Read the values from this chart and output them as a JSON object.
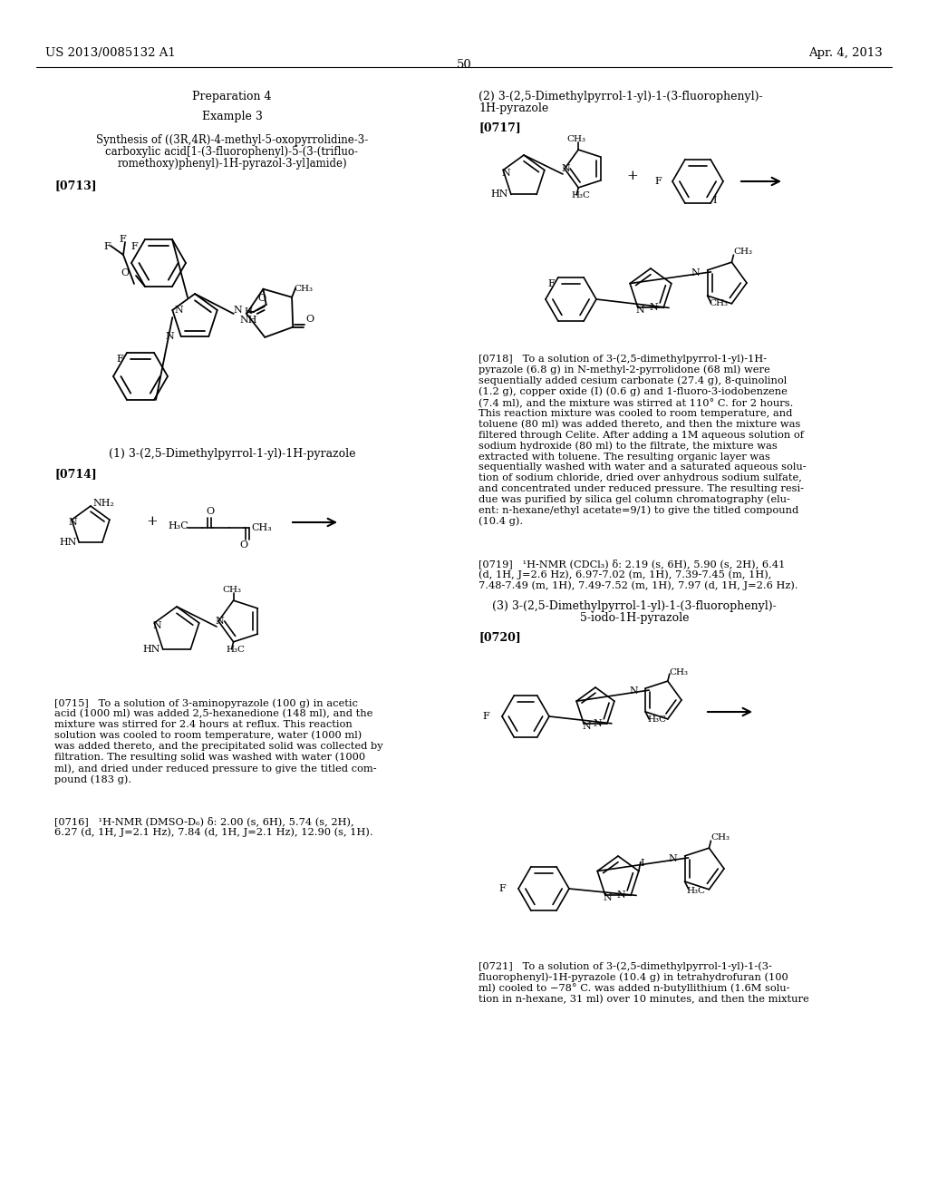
{
  "background_color": "#ffffff",
  "page_number": "50",
  "header_left": "US 2013/0085132 A1",
  "header_right": "Apr. 4, 2013",
  "lc_prep": "Preparation 4",
  "lc_ex": "Example 3",
  "lc_synth_line1": "Synthesis of ((3R,4R)-4-methyl-5-oxopyrrolidine-3-",
  "lc_synth_line2": "carboxylic acid[1-(3-fluorophenyl)-5-(3-(trifluo-",
  "lc_synth_line3": "romethoxy)phenyl)-1H-pyrazol-3-yl]amide)",
  "lc_0713": "[0713]",
  "lc_sec1": "(1) 3-(2,5-Dimethylpyrrol-1-yl)-1H-pyrazole",
  "lc_0714": "[0714]",
  "lc_0715": "[0715]   To a solution of 3-aminopyrazole (100 g) in acetic\nacid (1000 ml) was added 2,5-hexanedione (148 ml), and the\nmixture was stirred for 2.4 hours at reflux. This reaction\nsolution was cooled to room temperature, water (1000 ml)\nwas added thereto, and the precipitated solid was collected by\nfiltration. The resulting solid was washed with water (1000\nml), and dried under reduced pressure to give the titled com-\npound (183 g).",
  "lc_0716": "[0716]   ¹H-NMR (DMSO-D₆) δ: 2.00 (s, 6H), 5.74 (s, 2H),\n6.27 (d, 1H, J=2.1 Hz), 7.84 (d, 1H, J=2.1 Hz), 12.90 (s, 1H).",
  "rc_sec2_line1": "(2) 3-(2,5-Dimethylpyrrol-1-yl)-1-(3-fluorophenyl)-",
  "rc_sec2_line2": "1H-pyrazole",
  "rc_0717": "[0717]",
  "rc_0718": "[0718]   To a solution of 3-(2,5-dimethylpyrrol-1-yl)-1H-\npyrazole (6.8 g) in N-methyl-2-pyrrolidone (68 ml) were\nsequentially added cesium carbonate (27.4 g), 8-quinolinol\n(1.2 g), copper oxide (I) (0.6 g) and 1-fluoro-3-iodobenzene\n(7.4 ml), and the mixture was stirred at 110° C. for 2 hours.\nThis reaction mixture was cooled to room temperature, and\ntoluene (80 ml) was added thereto, and then the mixture was\nfiltered through Celite. After adding a 1M aqueous solution of\nsodium hydroxide (80 ml) to the filtrate, the mixture was\nextracted with toluene. The resulting organic layer was\nsequentially washed with water and a saturated aqueous solu-\ntion of sodium chloride, dried over anhydrous sodium sulfate,\nand concentrated under reduced pressure. The resulting resi-\ndue was purified by silica gel column chromatography (elu-\nent: n-hexane/ethyl acetate=9/1) to give the titled compound\n(10.4 g).",
  "rc_0719": "[0719]   ¹H-NMR (CDCl₃) δ: 2.19 (s, 6H), 5.90 (s, 2H), 6.41\n(d, 1H, J=2.6 Hz), 6.97-7.02 (m, 1H), 7.39-7.45 (m, 1H),\n7.48-7.49 (m, 1H), 7.49-7.52 (m, 1H), 7.97 (d, 1H, J=2.6 Hz).",
  "rc_sec3_line1": "(3) 3-(2,5-Dimethylpyrrol-1-yl)-1-(3-fluorophenyl)-",
  "rc_sec3_line2": "5-iodo-1H-pyrazole",
  "rc_0720": "[0720]",
  "rc_0721": "[0721]   To a solution of 3-(2,5-dimethylpyrrol-1-yl)-1-(3-\nfluorophenyl)-1H-pyrazole (10.4 g) in tetrahydrofuran (100\nml) cooled to −78° C. was added n-butyllithium (1.6M solu-\ntion in n-hexane, 31 ml) over 10 minutes, and then the mixture"
}
